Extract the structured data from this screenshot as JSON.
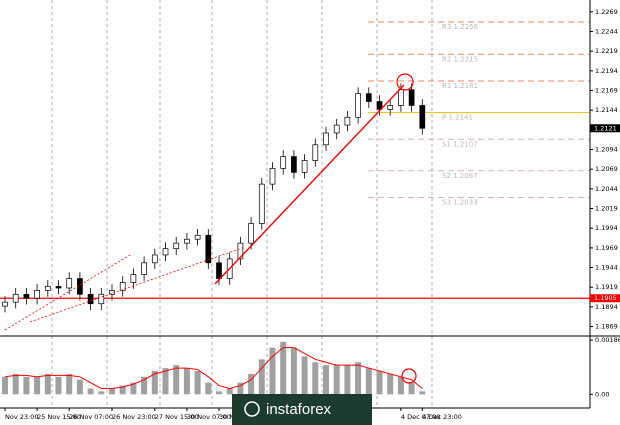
{
  "chart_data": {
    "type": "candlestick",
    "categories": [
      "Nov 23:00",
      null,
      null,
      "25 Nov 15:00",
      null,
      null,
      "26 Nov 07:00",
      null,
      null,
      null,
      "26 Nov 23:00",
      null,
      null,
      null,
      "27 Nov 15:00",
      null,
      null,
      "30 Nov 07:00",
      null,
      null,
      "30 Nov 23:00",
      null,
      null,
      null,
      null,
      null,
      null,
      null,
      null,
      null,
      null,
      null,
      null,
      null,
      null,
      null,
      null,
      "4 Dec 07:00",
      null,
      "4 Dec 23:00"
    ],
    "open": [
      1.1895,
      1.19,
      1.191,
      1.1905,
      1.1915,
      1.192,
      1.1918,
      1.193,
      1.191,
      1.1898,
      1.191,
      1.1915,
      1.1925,
      1.1935,
      1.195,
      1.196,
      1.1968,
      1.1975,
      1.198,
      1.1985,
      1.195,
      1.193,
      1.1955,
      1.1975,
      1.2,
      1.205,
      1.207,
      1.2085,
      1.2065,
      1.208,
      1.21,
      1.2115,
      1.2125,
      1.2135,
      1.2165,
      1.2155,
      1.2145,
      1.215,
      1.217,
      1.215
    ],
    "high": [
      1.1908,
      1.1918,
      1.1918,
      1.1923,
      1.1928,
      1.1928,
      1.1938,
      1.1938,
      1.1918,
      1.1918,
      1.1923,
      1.1933,
      1.1943,
      1.1958,
      1.1968,
      1.1976,
      1.1983,
      1.1988,
      1.1993,
      1.1993,
      1.1958,
      1.1963,
      1.1983,
      1.2008,
      1.2058,
      1.2078,
      1.2093,
      1.2093,
      1.2088,
      1.2108,
      1.2123,
      1.2133,
      1.2143,
      1.2173,
      1.2173,
      1.2163,
      1.2158,
      1.2178,
      1.2178,
      1.2158
    ],
    "low": [
      1.1887,
      1.1892,
      1.1897,
      1.1897,
      1.1907,
      1.191,
      1.191,
      1.1902,
      1.189,
      1.189,
      1.1902,
      1.1907,
      1.1917,
      1.1927,
      1.1942,
      1.1952,
      1.196,
      1.1967,
      1.1972,
      1.1942,
      1.1922,
      1.1922,
      1.1947,
      1.1967,
      1.1992,
      1.2042,
      1.2062,
      1.2057,
      1.2057,
      1.2072,
      1.2092,
      1.2107,
      1.2117,
      1.2127,
      1.2147,
      1.2137,
      1.2137,
      1.2142,
      1.2142,
      1.2113
    ],
    "close": [
      1.19,
      1.191,
      1.1905,
      1.1915,
      1.192,
      1.1918,
      1.193,
      1.191,
      1.1898,
      1.191,
      1.1915,
      1.1925,
      1.1935,
      1.195,
      1.196,
      1.1968,
      1.1975,
      1.198,
      1.1985,
      1.195,
      1.193,
      1.1955,
      1.1975,
      1.2,
      1.205,
      1.207,
      1.2085,
      1.2065,
      1.208,
      1.21,
      1.2115,
      1.2125,
      1.2135,
      1.2165,
      1.2155,
      1.2145,
      1.215,
      1.217,
      1.215,
      1.2121
    ],
    "ylim": [
      1.1857,
      1.2284
    ],
    "yticks": [
      1.2269,
      1.2244,
      1.2219,
      1.2194,
      1.2169,
      1.2144,
      1.2094,
      1.2069,
      1.2044,
      1.2019,
      1.1994,
      1.1969,
      1.1944,
      1.1919,
      1.1894,
      1.1869
    ],
    "current_price": 1.2121,
    "support": {
      "value": 1.1905,
      "color": "#ff0000"
    },
    "levels": [
      {
        "label": "R3 1.2256",
        "value": 1.2256,
        "color": "#f08a5d"
      },
      {
        "label": "R2 1.2215",
        "value": 1.2215,
        "color": "#f08a5d"
      },
      {
        "label": "R1 1.2181",
        "value": 1.2181,
        "color": "#f08a5d"
      },
      {
        "label": "P 1.2141",
        "value": 1.2141,
        "color": "#f5c518"
      },
      {
        "label": "S1 1.2107",
        "value": 1.2107,
        "color": "#dcb6b6"
      },
      {
        "label": "S2 1.2067",
        "value": 1.2067,
        "color": "#dcb6b6"
      },
      {
        "label": "S3 1.2033",
        "value": 1.2033,
        "color": "#dcb6b6"
      }
    ],
    "indicator": {
      "histogram": [
        0.0006,
        0.0007,
        0.0006,
        0.0006,
        0.0007,
        0.0006,
        0.0007,
        0.0005,
        0.0002,
        0.0001,
        0.0002,
        0.0003,
        0.0004,
        0.0006,
        0.0008,
        0.0009,
        0.001,
        0.0009,
        0.0008,
        0.0004,
        0.0001,
        0.0002,
        0.0004,
        0.0007,
        0.0012,
        0.0016,
        0.0018,
        0.0016,
        0.0013,
        0.0011,
        0.001,
        0.001,
        0.001,
        0.0011,
        0.0009,
        0.0008,
        0.0007,
        0.0006,
        0.0004,
        0.0001
      ],
      "signal": [
        0.0006,
        0.00065,
        0.00065,
        0.0006,
        0.00065,
        0.00065,
        0.00065,
        0.0006,
        0.0004,
        0.0002,
        0.0002,
        0.00025,
        0.00035,
        0.0005,
        0.0007,
        0.0008,
        0.0009,
        0.0009,
        0.00085,
        0.0006,
        0.0003,
        0.0002,
        0.0003,
        0.0005,
        0.0009,
        0.0013,
        0.0016,
        0.0016,
        0.0014,
        0.0012,
        0.0011,
        0.001,
        0.001,
        0.001,
        0.0009,
        0.0008,
        0.0007,
        0.0006,
        0.0005,
        0.0002
      ],
      "histogram_color": "#a0a0a0",
      "signal_color": "#ff0000",
      "ylim": [
        -0.00047,
        0.002
      ],
      "yticks": [
        0.00186,
        {
          "value": 0,
          "label": "0.00"
        }
      ]
    },
    "watermark": "instaforex"
  }
}
